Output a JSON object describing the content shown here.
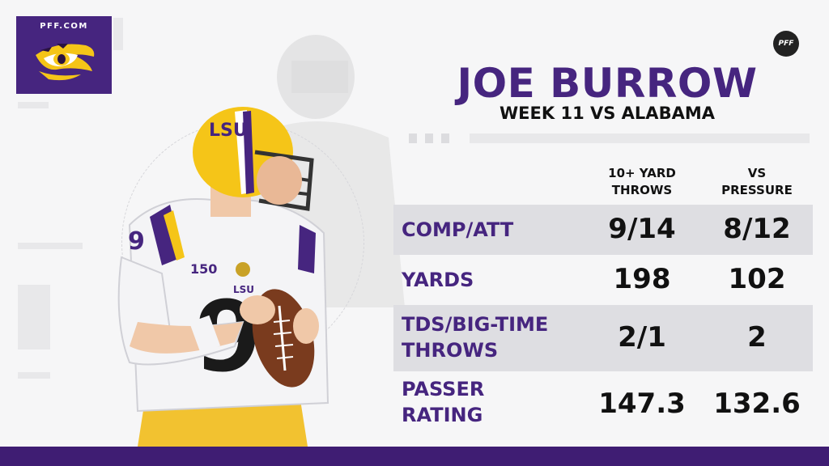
{
  "brand": {
    "site_label": "PFF.COM",
    "badge_label": "PFF",
    "team_logo_icon": "tiger-eye-icon",
    "primary_color": "#46257f",
    "accent_color": "#f5c518"
  },
  "header": {
    "player_name": "JOE BURROW",
    "game_label": "WEEK 11 VS ALABAMA"
  },
  "table": {
    "columns": [
      "10+ YARD\nTHROWS",
      "VS\nPRESSURE"
    ],
    "rows": [
      {
        "label": "COMP/ATT",
        "values": [
          "9/14",
          "8/12"
        ]
      },
      {
        "label": "YARDS",
        "values": [
          "198",
          "102"
        ]
      },
      {
        "label": "TDS/BIG-TIME\nTHROWS",
        "values": [
          "2/1",
          "2"
        ]
      },
      {
        "label": "PASSER\nRATING",
        "values": [
          "147.3",
          "132.6"
        ]
      }
    ]
  },
  "player_graphic": {
    "icon": "quarterback-photo-icon",
    "helmet_text": "LSU",
    "jersey_number": "9",
    "patch_text": "150",
    "chest_text": "LSU"
  }
}
